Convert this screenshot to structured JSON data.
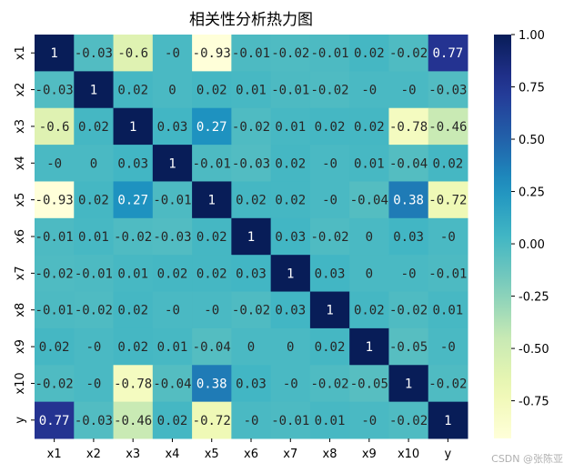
{
  "chart_data": {
    "type": "heatmap",
    "title": "相关性分析热力图",
    "labels": [
      "x1",
      "x2",
      "x3",
      "x4",
      "x5",
      "x6",
      "x7",
      "x8",
      "x9",
      "x10",
      "y"
    ],
    "values": [
      [
        1,
        -0.03,
        -0.6,
        0,
        -0.93,
        -0.01,
        -0.02,
        -0.01,
        0.02,
        -0.02,
        0.77
      ],
      [
        -0.03,
        1,
        0.02,
        0,
        0.02,
        0.01,
        -0.01,
        -0.02,
        0,
        0,
        -0.03
      ],
      [
        -0.6,
        0.02,
        1,
        0.03,
        0.27,
        -0.02,
        0.01,
        0.02,
        0.02,
        -0.78,
        -0.46
      ],
      [
        0,
        0,
        0.03,
        1,
        -0.01,
        -0.03,
        0.02,
        0,
        0.01,
        -0.04,
        0.02
      ],
      [
        -0.93,
        0.02,
        0.27,
        -0.01,
        1,
        0.02,
        0.02,
        0,
        -0.04,
        0.38,
        -0.72
      ],
      [
        -0.01,
        0.01,
        -0.02,
        -0.03,
        0.02,
        1,
        0.03,
        -0.02,
        0,
        0.03,
        0
      ],
      [
        -0.02,
        -0.01,
        0.01,
        0.02,
        0.02,
        0.03,
        1,
        0.03,
        0,
        0,
        -0.01
      ],
      [
        -0.01,
        -0.02,
        0.02,
        0,
        0,
        -0.02,
        0.03,
        1,
        0.02,
        -0.02,
        0.01
      ],
      [
        0.02,
        0,
        0.02,
        0.01,
        -0.04,
        0,
        0,
        0.02,
        1,
        -0.05,
        0
      ],
      [
        -0.02,
        0,
        -0.78,
        -0.04,
        0.38,
        0.03,
        0,
        -0.02,
        -0.05,
        1,
        -0.02
      ],
      [
        0.77,
        -0.03,
        -0.46,
        0.02,
        -0.72,
        0,
        -0.01,
        0.01,
        0,
        -0.02,
        1
      ]
    ],
    "value_range": [
      -0.93,
      1
    ],
    "colormap": "YlGnBu",
    "colorbar_ticks": [
      "1.00",
      "0.75",
      "0.50",
      "0.25",
      "0.00",
      "-0.25",
      "-0.50",
      "-0.75"
    ],
    "colorbar_tick_values": [
      1,
      0.75,
      0.5,
      0.25,
      0,
      -0.25,
      -0.5,
      -0.75
    ]
  },
  "watermark": "CSDN @张陈亚"
}
